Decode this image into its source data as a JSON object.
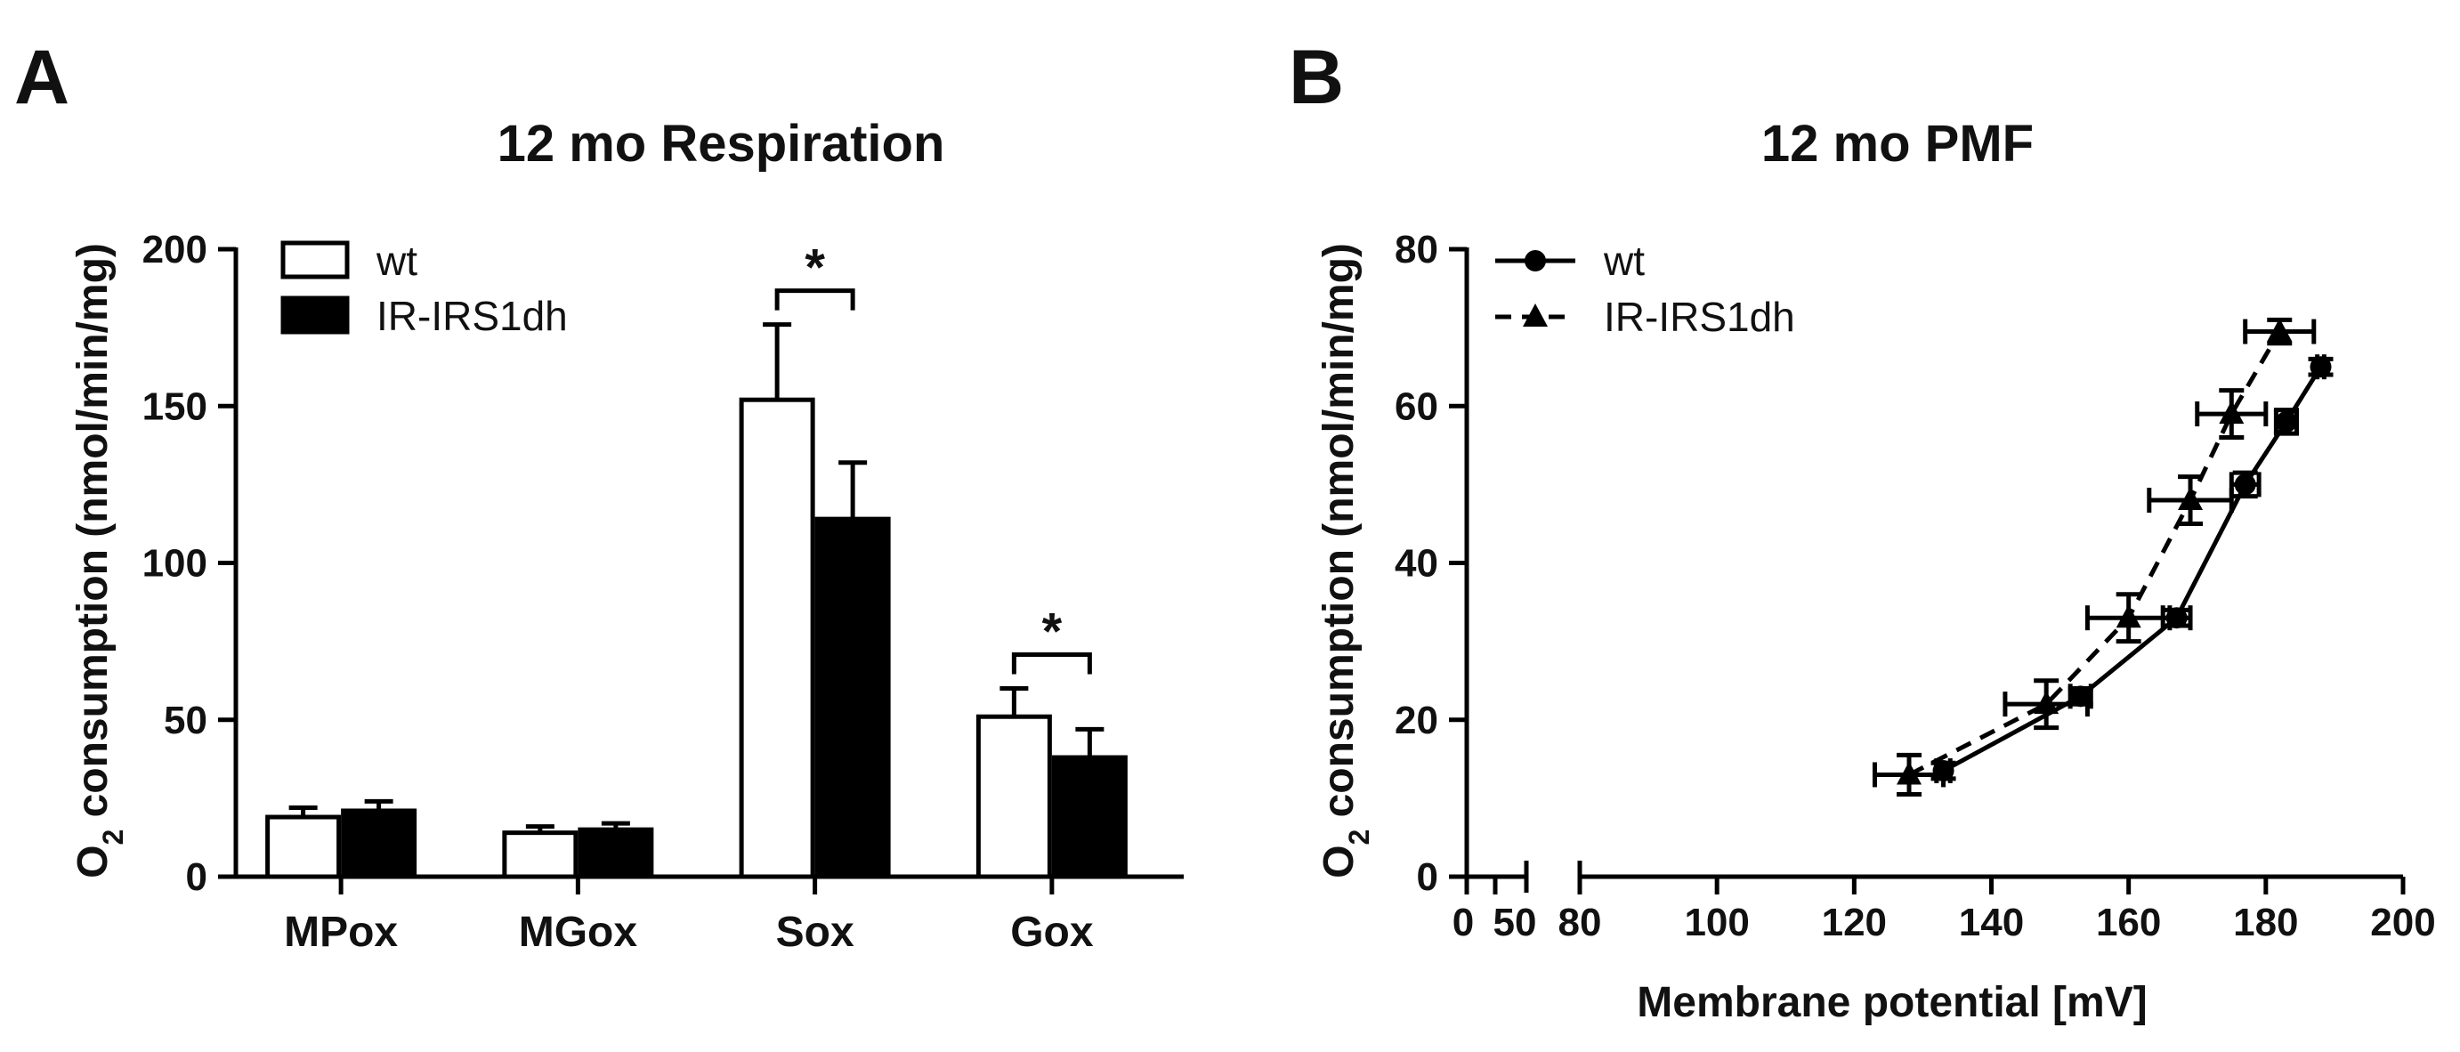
{
  "panels": [
    {
      "letter": "A",
      "title": "12 mo Respiration"
    },
    {
      "letter": "B",
      "title": "12 mo PMF"
    }
  ],
  "chart_data": [
    {
      "type": "bar",
      "title": "12 mo Respiration",
      "xlabel": "",
      "ylabel_parts": [
        "O",
        "2",
        " consumption (nmol/min/mg)"
      ],
      "ylim": [
        0,
        200
      ],
      "yticks": [
        0,
        50,
        100,
        150,
        200
      ],
      "categories": [
        "MPox",
        "MGox",
        "Sox",
        "Gox"
      ],
      "series": [
        {
          "name": "wt",
          "fill": "#ffffff",
          "values": [
            19,
            14,
            152,
            51
          ],
          "errors": [
            3,
            2,
            24,
            9
          ]
        },
        {
          "name": "IR-IRS1dh",
          "fill": "#000000",
          "values": [
            21,
            15,
            114,
            38
          ],
          "errors": [
            3,
            2,
            18,
            9
          ]
        }
      ],
      "significance": [
        {
          "category": "Sox",
          "label": "*"
        },
        {
          "category": "Gox",
          "label": "*"
        }
      ],
      "legend": "top-left"
    },
    {
      "type": "line",
      "title": "12 mo PMF",
      "xlabel": "Membrane potential [mV]",
      "ylabel_parts": [
        "O",
        "2",
        " consumption (nmol/min/mg)"
      ],
      "ylim": [
        0,
        80
      ],
      "yticks": [
        0,
        20,
        40,
        60,
        80
      ],
      "xticks_left": [
        "0",
        "50"
      ],
      "xticks_right": [
        80,
        100,
        120,
        140,
        160,
        180,
        200
      ],
      "xlim_right": [
        80,
        200
      ],
      "axis_break": true,
      "series": [
        {
          "name": "wt",
          "marker": "circle",
          "line": "solid",
          "points": [
            {
              "x": 133,
              "y": 13.5,
              "xerr": 1,
              "yerr": 1
            },
            {
              "x": 153,
              "y": 23,
              "xerr": 1.5,
              "yerr": 1
            },
            {
              "x": 167,
              "y": 33,
              "xerr": 2,
              "yerr": 1
            },
            {
              "x": 177,
              "y": 50,
              "xerr": 2,
              "yerr": 1.5
            },
            {
              "x": 183,
              "y": 58,
              "xerr": 1.5,
              "yerr": 1.5
            },
            {
              "x": 188,
              "y": 65,
              "xerr": 0.5,
              "yerr": 1
            }
          ]
        },
        {
          "name": "IR-IRS1dh",
          "marker": "triangle",
          "line": "dashed",
          "points": [
            {
              "x": 128,
              "y": 13,
              "xerr": 5,
              "yerr": 2.5
            },
            {
              "x": 148,
              "y": 22,
              "xerr": 6,
              "yerr": 3
            },
            {
              "x": 160,
              "y": 33,
              "xerr": 6,
              "yerr": 3
            },
            {
              "x": 169,
              "y": 48,
              "xerr": 6,
              "yerr": 3
            },
            {
              "x": 175,
              "y": 59,
              "xerr": 5,
              "yerr": 3
            },
            {
              "x": 182,
              "y": 69.5,
              "xerr": 5,
              "yerr": 1.5
            }
          ]
        }
      ],
      "legend": "top-left"
    }
  ]
}
